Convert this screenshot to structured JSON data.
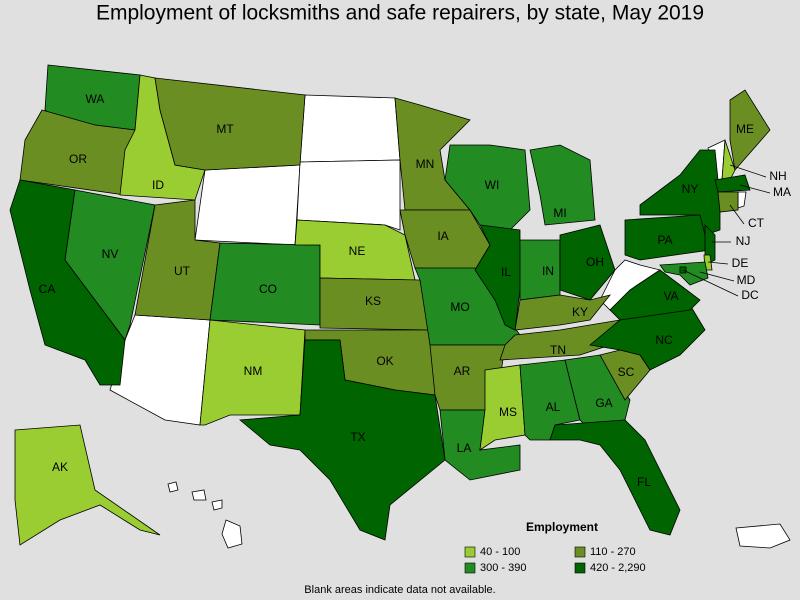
{
  "title": "Employment of locksmiths and safe repairers, by state, May 2019",
  "legend": {
    "title": "Employment",
    "items": [
      {
        "label": "40 - 100",
        "color": "#9acd32"
      },
      {
        "label": "110 - 270",
        "color": "#6b8e23"
      },
      {
        "label": "300 - 390",
        "color": "#228b22"
      },
      {
        "label": "420 - 2,290",
        "color": "#006400"
      }
    ]
  },
  "states": [
    {
      "label": "WA",
      "color": "#228b22"
    },
    {
      "label": "OR",
      "color": "#6b8e23"
    },
    {
      "label": "CA",
      "color": "#006400"
    },
    {
      "label": "NV",
      "color": "#228b22"
    },
    {
      "label": "ID",
      "color": "#9acd32"
    },
    {
      "label": "MT",
      "color": "#6b8e23"
    },
    {
      "label": "UT",
      "color": "#6b8e23"
    },
    {
      "label": "CO",
      "color": "#228b22"
    },
    {
      "label": "NM",
      "color": "#9acd32"
    },
    {
      "label": "NE",
      "color": "#9acd32"
    },
    {
      "label": "KS",
      "color": "#6b8e23"
    },
    {
      "label": "OK",
      "color": "#6b8e23"
    },
    {
      "label": "TX",
      "color": "#006400"
    },
    {
      "label": "MN",
      "color": "#6b8e23"
    },
    {
      "label": "IA",
      "color": "#6b8e23"
    },
    {
      "label": "MO",
      "color": "#228b22"
    },
    {
      "label": "AR",
      "color": "#6b8e23"
    },
    {
      "label": "LA",
      "color": "#228b22"
    },
    {
      "label": "WI",
      "color": "#228b22"
    },
    {
      "label": "IL",
      "color": "#006400"
    },
    {
      "label": "MI",
      "color": "#228b22"
    },
    {
      "label": "IN",
      "color": "#228b22"
    },
    {
      "label": "OH",
      "color": "#006400"
    },
    {
      "label": "KY",
      "color": "#6b8e23"
    },
    {
      "label": "TN",
      "color": "#6b8e23"
    },
    {
      "label": "MS",
      "color": "#9acd32"
    },
    {
      "label": "AL",
      "color": "#228b22"
    },
    {
      "label": "GA",
      "color": "#228b22"
    },
    {
      "label": "FL",
      "color": "#006400"
    },
    {
      "label": "SC",
      "color": "#6b8e23"
    },
    {
      "label": "NC",
      "color": "#006400"
    },
    {
      "label": "VA",
      "color": "#006400"
    },
    {
      "label": "PA",
      "color": "#006400"
    },
    {
      "label": "NY",
      "color": "#006400"
    },
    {
      "label": "ME",
      "color": "#6b8e23"
    },
    {
      "label": "NH",
      "color": "#9acd32"
    },
    {
      "label": "MA",
      "color": "#006400"
    },
    {
      "label": "CT",
      "color": "#6b8e23"
    },
    {
      "label": "NJ",
      "color": "#006400"
    },
    {
      "label": "DE",
      "color": "#9acd32"
    },
    {
      "label": "MD",
      "color": "#228b22"
    },
    {
      "label": "DC",
      "color": "#006400"
    },
    {
      "label": "AK",
      "color": "#9acd32"
    }
  ],
  "footnote": "Blank areas indicate data not available."
}
